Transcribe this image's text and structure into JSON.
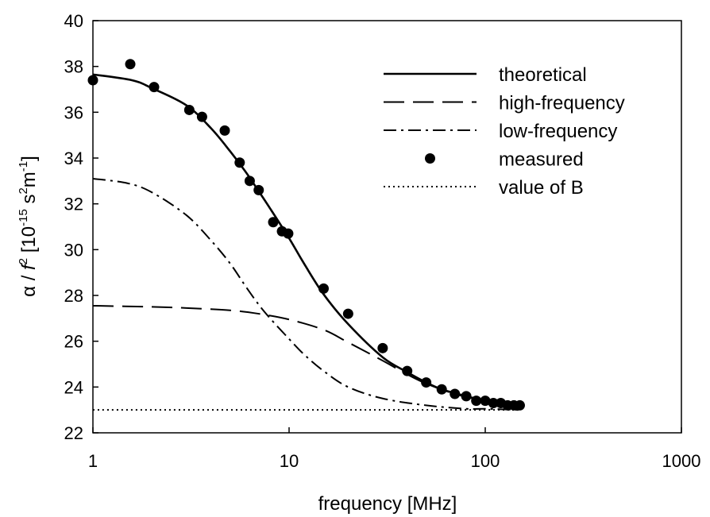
{
  "chart_data": {
    "type": "line",
    "xscale": "log",
    "xlim": [
      1,
      1000
    ],
    "ylim": [
      22,
      40
    ],
    "grid": false,
    "legend_position": "top-right",
    "xlabel": "frequency [MHz]",
    "ylabel": {
      "alpha": "α",
      "slash": " / ",
      "f": "f",
      "exp2": "2",
      "bracket_open": " [10",
      "exp_minus15": "-15",
      "s": " s",
      "m": "m",
      "exp_minus1": "-1",
      "bracket_close": "]"
    },
    "x_ticks": [
      1,
      10,
      100,
      1000
    ],
    "x_tick_labels": [
      "1",
      "10",
      "100",
      "1000"
    ],
    "y_ticks": [
      22,
      24,
      26,
      28,
      30,
      32,
      34,
      36,
      38,
      40
    ],
    "y_tick_labels": [
      "22",
      "24",
      "26",
      "28",
      "30",
      "32",
      "34",
      "36",
      "38",
      "40"
    ],
    "series": [
      {
        "name": "theoretical",
        "style": "solid",
        "x": [
          1,
          1.58,
          2,
          3,
          4,
          5,
          6,
          7,
          8,
          10,
          12,
          15,
          20,
          30,
          40,
          50,
          60,
          80,
          100,
          120,
          150
        ],
        "y": [
          37.65,
          37.4,
          37.05,
          36.3,
          35.3,
          34.3,
          33.4,
          32.55,
          31.8,
          30.5,
          29.35,
          28.05,
          26.75,
          25.3,
          24.65,
          24.2,
          23.9,
          23.6,
          23.4,
          23.3,
          23.2
        ]
      },
      {
        "name": "high-frequency",
        "style": "dashed",
        "x": [
          1,
          2,
          3,
          5,
          7,
          10,
          15,
          20,
          30,
          40,
          50,
          70,
          100,
          150
        ],
        "y": [
          27.55,
          27.5,
          27.45,
          27.35,
          27.2,
          26.95,
          26.5,
          25.95,
          25.15,
          24.55,
          24.15,
          23.7,
          23.4,
          23.2
        ]
      },
      {
        "name": "low-frequency",
        "style": "dashdot",
        "x": [
          1,
          1.5,
          2,
          3,
          4,
          5,
          6,
          7,
          8,
          10,
          12,
          15,
          20,
          30,
          50,
          80,
          100,
          150
        ],
        "y": [
          33.1,
          32.9,
          32.5,
          31.5,
          30.4,
          29.4,
          28.4,
          27.6,
          27.0,
          26.1,
          25.4,
          24.7,
          24.0,
          23.5,
          23.2,
          23.05,
          23.05,
          23.0
        ]
      },
      {
        "name": "measured",
        "style": "markers",
        "x": [
          1,
          1.55,
          2.05,
          3.1,
          3.6,
          4.7,
          5.6,
          6.3,
          7.0,
          8.3,
          9.2,
          9.9,
          15,
          20,
          30,
          40,
          50,
          60,
          70,
          80,
          90,
          100,
          110,
          120,
          130,
          140,
          150
        ],
        "y": [
          37.4,
          38.1,
          37.1,
          36.1,
          35.8,
          35.2,
          33.8,
          33.0,
          32.6,
          31.2,
          30.8,
          30.7,
          28.3,
          27.2,
          25.7,
          24.7,
          24.2,
          23.9,
          23.7,
          23.6,
          23.4,
          23.4,
          23.3,
          23.3,
          23.2,
          23.2,
          23.2
        ]
      },
      {
        "name": "value of B",
        "style": "dotted",
        "x": [
          1,
          150
        ],
        "y": [
          23.0,
          23.0
        ]
      }
    ]
  }
}
